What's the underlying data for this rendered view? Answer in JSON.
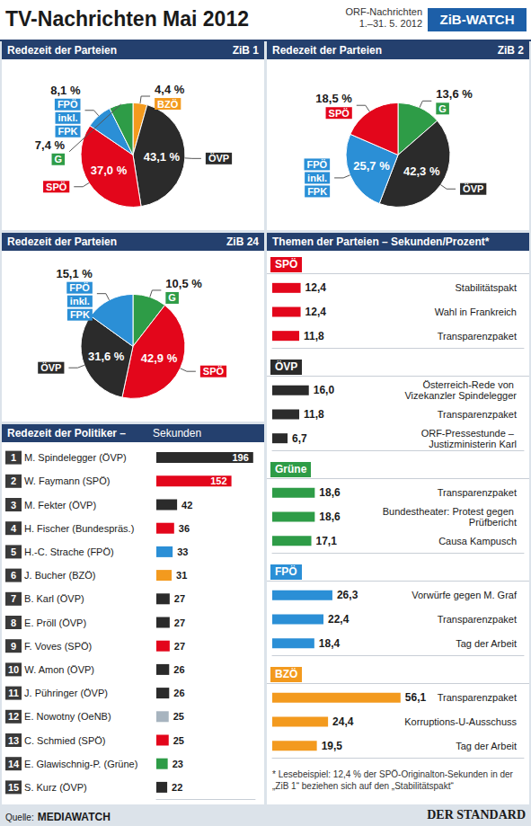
{
  "header": {
    "title": "TV-Nachrichten Mai 2012",
    "subtitle": "ORF-Nachrichten 1.–31. 5. 2012",
    "badge": "ZiB-WATCH"
  },
  "panels": {
    "topics": {
      "title": "Themen der Parteien – Sekunden/Prozent*",
      "note": "* Lesebeispiel: 12,4 % der SPÖ-Originalton-Sekunden in der „ZiB 1“ beziehen sich auf den „Stabilitätspakt“"
    }
  },
  "footer": {
    "source_label": "Quelle:",
    "source": "MEDIAWATCH",
    "publisher": "DER STANDARD"
  },
  "chart_data": [
    {
      "type": "pie",
      "title": "Redezeit der Parteien",
      "subtitle": "ZiB 1",
      "categories": [
        "BZÖ",
        "ÖVP",
        "SPÖ",
        "FPÖ inkl. FPK",
        "G"
      ],
      "values": [
        4.4,
        43.1,
        37.0,
        8.1,
        7.4
      ],
      "value_labels": [
        "4,4 %",
        "43,1 %",
        "37,0 %",
        "8,1 %",
        "7,4 %"
      ],
      "colors": [
        "#f39a1e",
        "#2b2b2b",
        "#e3061b",
        "#2b8fd6",
        "#2e9c47"
      ],
      "data_labels": true
    },
    {
      "type": "pie",
      "title": "Redezeit der Parteien",
      "subtitle": "ZiB 2",
      "categories": [
        "G",
        "ÖVP",
        "FPÖ inkl. FPK",
        "SPÖ"
      ],
      "values": [
        13.6,
        42.3,
        25.7,
        18.5
      ],
      "value_labels": [
        "13,6 %",
        "42,3 %",
        "25,7 %",
        "18,5 %"
      ],
      "colors": [
        "#2e9c47",
        "#2b2b2b",
        "#2b8fd6",
        "#e3061b"
      ],
      "data_labels": true
    },
    {
      "type": "pie",
      "title": "Redezeit der Parteien",
      "subtitle": "ZiB 24",
      "categories": [
        "G",
        "SPÖ",
        "ÖVP",
        "FPÖ inkl. FPK"
      ],
      "values": [
        10.5,
        42.9,
        31.6,
        15.1
      ],
      "value_labels": [
        "10,5 %",
        "42,9 %",
        "31,6 %",
        "15,1 %"
      ],
      "colors": [
        "#2e9c47",
        "#e3061b",
        "#2b2b2b",
        "#2b8fd6"
      ],
      "data_labels": true
    },
    {
      "type": "bar",
      "orientation": "horizontal",
      "title": "Redezeit der Politiker –",
      "xlabel": "Sekunden",
      "ranks": [
        1,
        2,
        3,
        4,
        5,
        6,
        7,
        8,
        9,
        10,
        11,
        12,
        13,
        14,
        15
      ],
      "categories": [
        "M. Spindelegger (ÖVP)",
        "W. Faymann (SPÖ)",
        "M. Fekter (ÖVP)",
        "H. Fischer (Bundespräs.)",
        "H.-C. Strache (FPÖ)",
        "J. Bucher (BZÖ)",
        "B. Karl (ÖVP)",
        "E. Pröll (ÖVP)",
        "F. Voves (SPÖ)",
        "W. Amon (ÖVP)",
        "J. Pühringer (ÖVP)",
        "E. Nowotny (OeNB)",
        "C. Schmied (SPÖ)",
        "E. Glawischnig-P. (Grüne)",
        "S. Kurz (ÖVP)"
      ],
      "values": [
        196,
        152,
        42,
        36,
        33,
        31,
        27,
        27,
        27,
        26,
        26,
        25,
        25,
        23,
        22
      ],
      "colors": [
        "#2b2b2b",
        "#e3061b",
        "#2b2b2b",
        "#e3061b",
        "#2b8fd6",
        "#f39a1e",
        "#2b2b2b",
        "#2b2b2b",
        "#e3061b",
        "#2b2b2b",
        "#2b2b2b",
        "#a7b4bf",
        "#e3061b",
        "#2e9c47",
        "#2b2b2b"
      ],
      "data_labels": true,
      "xlim": [
        0,
        200
      ],
      "tick_labels": "y"
    },
    {
      "type": "bar",
      "orientation": "horizontal",
      "title": "SPÖ",
      "color": "#e3061b",
      "categories": [
        "Stabilitätspakt",
        "Wahl in Frankreich",
        "Transparenzpaket"
      ],
      "values": [
        12.4,
        12.4,
        11.8
      ],
      "value_labels": [
        "12,4",
        "12,4",
        "11,8"
      ],
      "data_labels": true,
      "xlim": [
        0,
        110
      ],
      "tick_labels": "y"
    },
    {
      "type": "bar",
      "orientation": "horizontal",
      "title": "ÖVP",
      "color": "#2b2b2b",
      "categories": [
        "Österreich-Rede von Vizekanzler Spindelegger",
        "Transparenzpaket",
        "ORF-Pressestunde – Justizministerin Karl"
      ],
      "values": [
        16.0,
        11.8,
        6.7
      ],
      "value_labels": [
        "16,0",
        "11,8",
        "6,7"
      ],
      "data_labels": true,
      "xlim": [
        0,
        110
      ],
      "tick_labels": "y"
    },
    {
      "type": "bar",
      "orientation": "horizontal",
      "title": "Grüne",
      "color": "#2e9c47",
      "categories": [
        "Transparenzpaket",
        "Bundestheater: Protest gegen Prüfbericht",
        "Causa Kampusch"
      ],
      "values": [
        18.6,
        18.6,
        17.1
      ],
      "value_labels": [
        "18,6",
        "18,6",
        "17,1"
      ],
      "data_labels": true,
      "xlim": [
        0,
        110
      ],
      "tick_labels": "y"
    },
    {
      "type": "bar",
      "orientation": "horizontal",
      "title": "FPÖ",
      "color": "#2b8fd6",
      "categories": [
        "Vorwürfe gegen M. Graf",
        "Transparenzpaket",
        "Tag der Arbeit"
      ],
      "values": [
        26.3,
        22.4,
        18.4
      ],
      "value_labels": [
        "26,3",
        "22,4",
        "18,4"
      ],
      "data_labels": true,
      "xlim": [
        0,
        110
      ],
      "tick_labels": "y"
    },
    {
      "type": "bar",
      "orientation": "horizontal",
      "title": "BZÖ",
      "color": "#f39a1e",
      "categories": [
        "Transparenzpaket",
        "Korruptions-U-Ausschuss",
        "Tag der Arbeit"
      ],
      "values": [
        56.1,
        24.4,
        19.5
      ],
      "value_labels": [
        "56,1",
        "24,4",
        "19,5"
      ],
      "data_labels": true,
      "xlim": [
        0,
        110
      ],
      "tick_labels": "y"
    }
  ]
}
